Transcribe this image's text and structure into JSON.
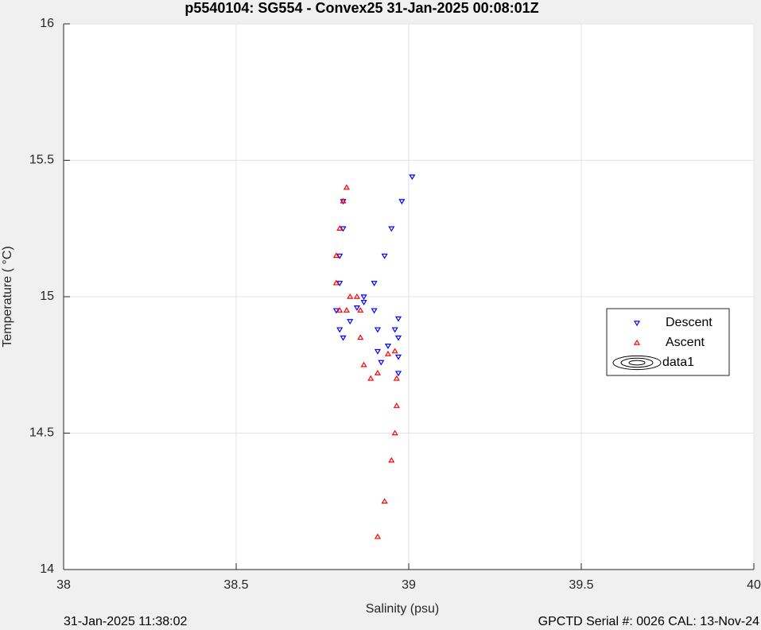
{
  "chart_data": {
    "type": "scatter",
    "title": "p5540104: SG554 - Convex25 31-Jan-2025 00:08:01Z",
    "x_label": "Salinity (psu)",
    "y_label": "Temperature ( °C)",
    "footer_left": "31-Jan-2025 11:38:02",
    "footer_right": "GPCTD Serial #: 0026 CAL: 13-Nov-24",
    "xlim": [
      38,
      40
    ],
    "xticks": [
      38,
      38.5,
      39,
      39.5,
      40
    ],
    "ylim": [
      14,
      16
    ],
    "yticks": [
      14,
      14.5,
      15,
      15.5,
      16
    ],
    "grid": true,
    "legend": "right",
    "series": [
      {
        "name": "Descent",
        "color": "#0000ff",
        "marker": "triangle-down",
        "x": [
          39.01,
          38.98,
          38.95,
          38.93,
          38.9,
          38.87,
          38.85,
          38.83,
          38.81,
          38.8,
          38.79,
          38.8,
          38.8,
          38.81,
          38.81,
          38.87,
          38.9,
          38.91,
          38.91,
          38.92,
          38.94,
          38.96,
          38.97,
          38.97,
          38.97,
          38.97
        ],
        "values": [
          15.44,
          15.35,
          15.25,
          15.15,
          15.05,
          15.0,
          14.96,
          14.91,
          14.85,
          14.88,
          14.95,
          15.05,
          15.15,
          15.25,
          15.35,
          14.98,
          14.95,
          14.88,
          14.8,
          14.76,
          14.82,
          14.88,
          14.92,
          14.85,
          14.78,
          14.72
        ]
      },
      {
        "name": "Ascent",
        "color": "#ff0000",
        "marker": "triangle-up",
        "x": [
          38.91,
          38.93,
          38.95,
          38.96,
          38.965,
          38.965,
          38.96,
          38.94,
          38.91,
          38.89,
          38.87,
          38.86,
          38.86,
          38.85,
          38.83,
          38.82,
          38.8,
          38.79,
          38.79,
          38.8,
          38.81,
          38.82
        ],
        "values": [
          14.12,
          14.25,
          14.4,
          14.5,
          14.6,
          14.7,
          14.8,
          14.79,
          14.72,
          14.7,
          14.75,
          14.85,
          14.95,
          15.0,
          15.0,
          14.95,
          14.95,
          15.05,
          15.15,
          15.25,
          15.35,
          15.4
        ]
      },
      {
        "name": "data1",
        "color": "#000000",
        "marker": "contour",
        "x": [],
        "values": []
      }
    ]
  }
}
